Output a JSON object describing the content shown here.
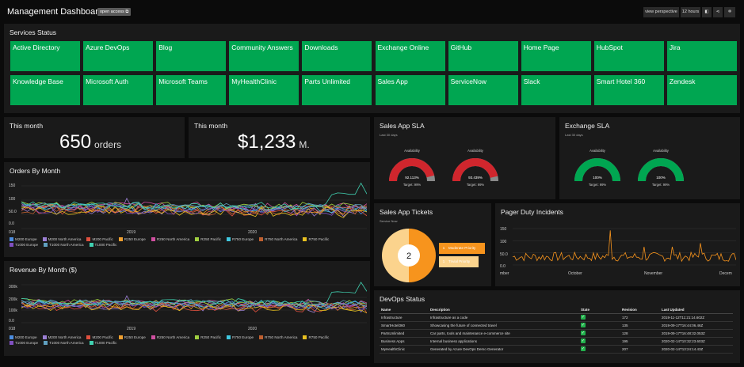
{
  "header": {
    "title": "Management Dashboard",
    "open_access": "open access",
    "view_perspective": "view perspective",
    "hours": "12 hours"
  },
  "services": {
    "title": "Services Status",
    "items": [
      "Active Directory",
      "Azure DevOps",
      "Blog",
      "Community Answers",
      "Downloads",
      "Exchange Online",
      "GitHub",
      "Home Page",
      "HubSpot",
      "Jira",
      "Knowledge Base",
      "Microsoft Auth",
      "Microsoft Teams",
      "MyHealthClinic",
      "Parts Unlimited",
      "Sales App",
      "ServiceNow",
      "Slack",
      "Smart Hotel 360",
      "Zendesk"
    ],
    "status_color": "#00a651"
  },
  "orders": {
    "label": "This month",
    "value": "650",
    "unit": "orders"
  },
  "revenue": {
    "label": "This month",
    "value": "$1,233",
    "unit": "M."
  },
  "orders_chart": {
    "title": "Orders By Month",
    "yticks": [
      "150",
      "100",
      "50.0",
      "0.0"
    ],
    "xticks": [
      "018",
      "2019",
      "2020"
    ]
  },
  "revenue_chart": {
    "title": "Revenue By Month ($)",
    "yticks": [
      "300k",
      "200k",
      "100k",
      "0.0"
    ],
    "xticks": [
      "018",
      "2019",
      "2020"
    ]
  },
  "legend": [
    {
      "name": "M200 Europe",
      "color": "#4c8de0"
    },
    {
      "name": "M200 North America",
      "color": "#9b7fd4"
    },
    {
      "name": "M200 Pacific",
      "color": "#e0503e"
    },
    {
      "name": "R250 Europe",
      "color": "#f0a030"
    },
    {
      "name": "R250 North America",
      "color": "#d04fa0"
    },
    {
      "name": "R250 Pacific",
      "color": "#a0d040"
    },
    {
      "name": "R750 Europe",
      "color": "#40c8e0"
    },
    {
      "name": "R750 North America",
      "color": "#c06030"
    },
    {
      "name": "R750 Pacific",
      "color": "#e8c020"
    },
    {
      "name": "T1000 Europe",
      "color": "#8050c0"
    },
    {
      "name": "T1000 North America",
      "color": "#60a0c0"
    },
    {
      "name": "T1000 Pacific",
      "color": "#40d0b0"
    }
  ],
  "sla_sales": {
    "title": "Sales App SLA",
    "sub": "Last 30 days",
    "gauges": [
      {
        "label": "Availability",
        "value": "92.113%",
        "target": "Target: 99%",
        "color": "#d0262d",
        "fraction": 0.92
      },
      {
        "label": "Availability",
        "value": "93.439%",
        "target": "Target: 99%",
        "color": "#d0262d",
        "fraction": 0.93
      }
    ]
  },
  "sla_exchange": {
    "title": "Exchange SLA",
    "sub": "Last 30 days",
    "gauges": [
      {
        "label": "Availability",
        "value": "100%",
        "target": "Target: 99%",
        "color": "#00a651",
        "fraction": 1.0
      },
      {
        "label": "Availability",
        "value": "100%",
        "target": "Target: 99%",
        "color": "#00a651",
        "fraction": 1.0
      }
    ]
  },
  "tickets": {
    "title": "Sales App Tickets",
    "sub": "Service Now",
    "total": "2",
    "items": [
      {
        "count": "1",
        "label": "Moderate Priority",
        "color": "#f7941d"
      },
      {
        "count": "1",
        "label": "Trivial Priority",
        "color": "#fbd38d"
      }
    ]
  },
  "pager": {
    "title": "Pager Duty Incidents",
    "yticks": [
      "150",
      "100",
      "50.0",
      "0.0"
    ],
    "xticks": [
      "mber",
      "October",
      "November",
      "Decem"
    ],
    "color": "#f7941d"
  },
  "devops": {
    "title": "DevOps Status",
    "columns": [
      "Name",
      "Description",
      "State",
      "Revision",
      "Last Updated"
    ],
    "rows": [
      [
        "Infrastructure",
        "Infrastructure as a code",
        "✓",
        "172",
        "2019-11-12T11:21:14.602Z"
      ],
      [
        "SmartHotel360",
        "Showcasing the future of connected travel",
        "✓",
        "135",
        "2019-09-17T16:44:06.46Z"
      ],
      [
        "PartsUnlimited",
        "Car parts, tools and maintenance e-commerce site",
        "✓",
        "128",
        "2019-09-17T16:48:32.053Z"
      ],
      [
        "Business Apps",
        "Internal business applications",
        "✓",
        "195",
        "2020-02-14T10:32:23.603Z"
      ],
      [
        "MyHealthClinic",
        "Generated by Azure DevOps Demo Generator",
        "✓",
        "207",
        "2020-02-14T13:24:14.43Z"
      ]
    ]
  }
}
